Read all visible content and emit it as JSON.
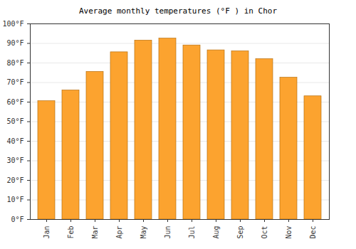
{
  "chart_data": {
    "type": "bar",
    "title": "Average monthly temperatures (°F ) in Chor",
    "categories": [
      "Jan",
      "Feb",
      "Mar",
      "Apr",
      "May",
      "Jun",
      "Jul",
      "Aug",
      "Sep",
      "Oct",
      "Nov",
      "Dec"
    ],
    "values": [
      60.5,
      66,
      75.5,
      85.5,
      91.5,
      92.5,
      89,
      86.5,
      86,
      82,
      72.5,
      63
    ],
    "color": "#fca32f",
    "ylim": [
      0,
      100
    ],
    "yticks": [
      {
        "value": 0,
        "label": "0°F"
      },
      {
        "value": 10,
        "label": "10°F"
      },
      {
        "value": 20,
        "label": "20°F"
      },
      {
        "value": 30,
        "label": "30°F"
      },
      {
        "value": 40,
        "label": "40°F"
      },
      {
        "value": 50,
        "label": "50°F"
      },
      {
        "value": 60,
        "label": "60°F"
      },
      {
        "value": 70,
        "label": "70°F"
      },
      {
        "value": 80,
        "label": "80°F"
      },
      {
        "value": 90,
        "label": "90°F"
      },
      {
        "value": 100,
        "label": "100°F"
      }
    ],
    "grid": true
  }
}
